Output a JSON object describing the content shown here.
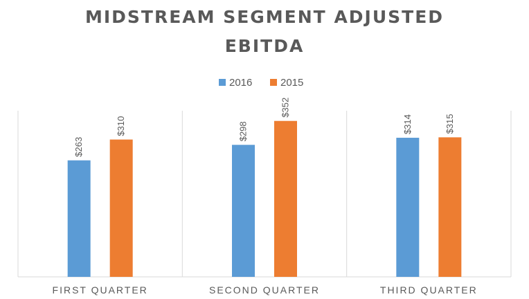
{
  "chart_data": {
    "type": "bar",
    "title_lines": [
      "MIDSTREAM SEGMENT ADJUSTED",
      "EBITDA"
    ],
    "categories": [
      "FIRST QUARTER",
      "SECOND QUARTER",
      "THIRD QUARTER"
    ],
    "series": [
      {
        "name": "2016",
        "color": "#5b9bd5",
        "values": [
          263,
          298,
          314
        ],
        "labels": [
          "$263",
          "$298",
          "$314"
        ]
      },
      {
        "name": "2015",
        "color": "#ed7d31",
        "values": [
          310,
          352,
          315
        ],
        "labels": [
          "$310",
          "$352",
          "$315"
        ]
      }
    ],
    "ylim": [
      0,
      400
    ],
    "y_axis_visible": false,
    "grid": false,
    "category_separators": true,
    "legend_position": "top-center",
    "colors": {
      "text": "#595959",
      "axis": "#d9d9d9",
      "background": "#ffffff"
    }
  }
}
